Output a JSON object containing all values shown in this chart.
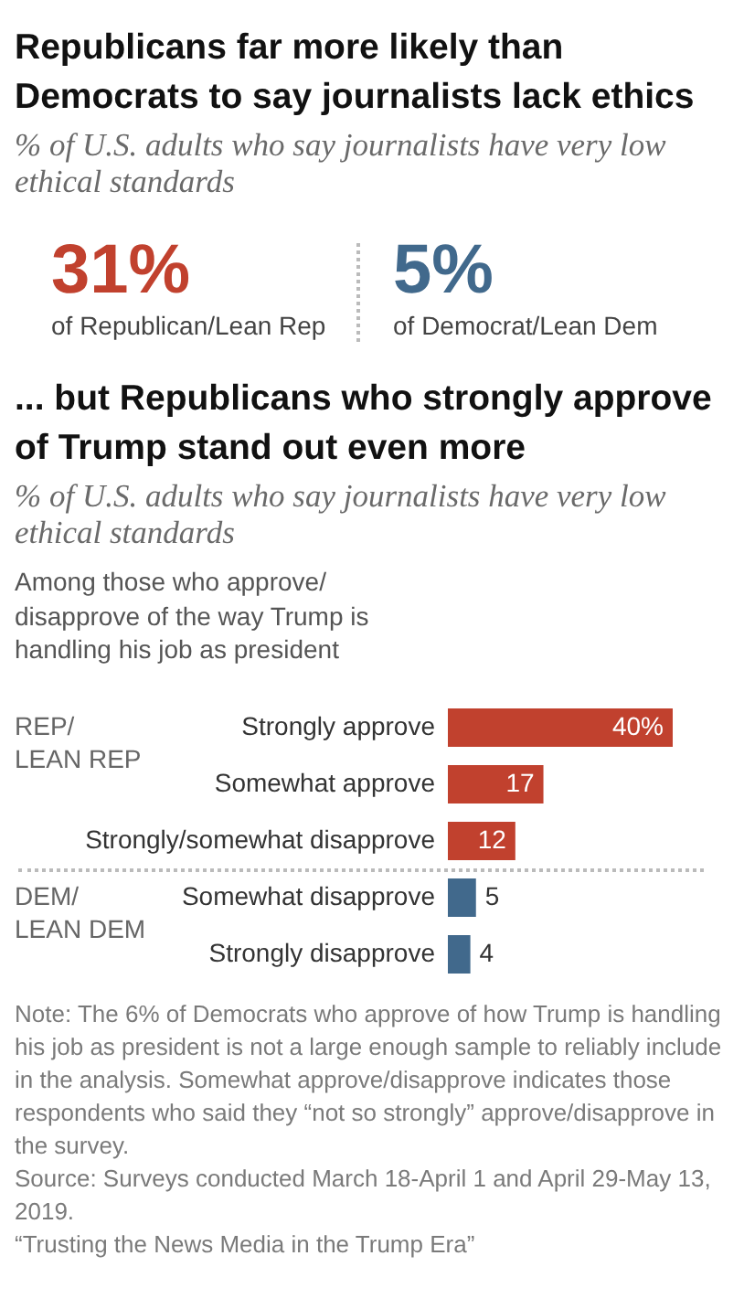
{
  "chart_data": [
    {
      "type": "other",
      "title": "Republicans far more likely than Democrats to say journalists lack ethics",
      "subtitle": "% of U.S. adults who say journalists have very low ethical standards",
      "annotations": [
        "31%",
        "of Republican/Lean Rep",
        "5%",
        "of Democrat/Lean Dem"
      ],
      "colors": [
        "#c1412e",
        "#41698c"
      ]
    },
    {
      "type": "bar",
      "orientation": "horizontal",
      "title": "... but Republicans who strongly approve of Trump stand out even more",
      "subtitle": "% of U.S. adults who say journalists have very low ethical standards",
      "ylabel": "Among those who approve/disapprove of the way Trump is handling his job as president",
      "categories": [
        "Strongly approve",
        "Somewhat approve",
        "Strongly/somewhat disapprove",
        "Somewhat disapprove",
        "Strongly disapprove"
      ],
      "values": [
        40,
        17,
        12,
        5,
        4
      ],
      "colors": [
        "#c1412e",
        "#c1412e",
        "#c1412e",
        "#41698c",
        "#41698c"
      ],
      "value_labels": [
        "40%",
        "17",
        "12",
        "5",
        "4"
      ],
      "xlim": [
        0,
        40
      ],
      "tick_labels": "y",
      "annotations": [
        "REP/ LEAN REP",
        "DEM/ LEAN DEM",
        "Note: The 6% of Democrats who approve of how Trump is handling his job as president is not a large enough sample to reliably include in the analysis. Somewhat approve/disapprove indicates those respondents who said they “not so strongly” approve/disapprove in the survey.",
        "Source: Surveys conducted March 18-April 1 and April 29-May 13, 2019.",
        "“Trusting the News Media in the Trump Era”"
      ]
    }
  ]
}
